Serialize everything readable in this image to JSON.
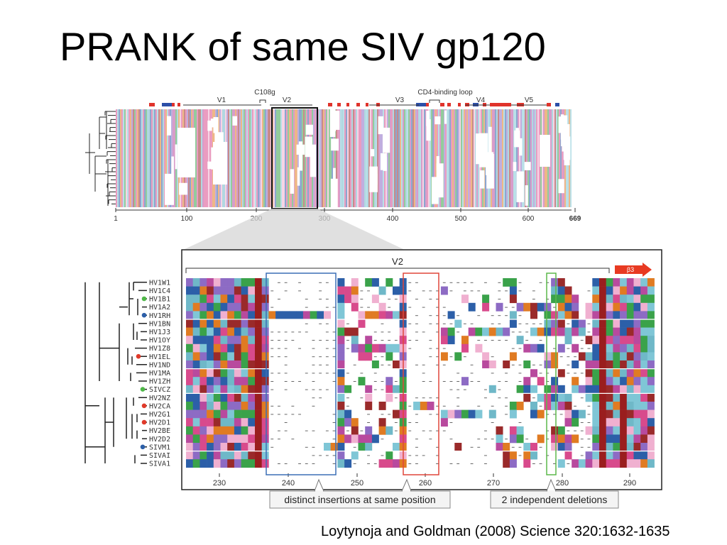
{
  "slide": {
    "title": "PRANK of same SIV gp120",
    "citation": "Loytynoja and Goldman (2008) Science 320:1632-1635"
  },
  "overview": {
    "regions": [
      "V1",
      "C108g",
      "V2",
      "V3",
      "CD4-binding loop",
      "V4",
      "V5"
    ],
    "axis_ticks": [
      "1",
      "100",
      "200",
      "300",
      "400",
      "500",
      "600",
      "669"
    ]
  },
  "detail": {
    "region_label": "V2",
    "strand_label": "β3",
    "sequences": [
      {
        "name": "HV1W1",
        "node": ""
      },
      {
        "name": "HV1C4",
        "node": ""
      },
      {
        "name": "HV1B1",
        "node": "green"
      },
      {
        "name": "HV1A2",
        "node": ""
      },
      {
        "name": "HV1RH",
        "node": "blue"
      },
      {
        "name": "HV1BN",
        "node": ""
      },
      {
        "name": "HV1J3",
        "node": ""
      },
      {
        "name": "HV1OY",
        "node": ""
      },
      {
        "name": "HV1Z8",
        "node": ""
      },
      {
        "name": "HV1EL",
        "node": "red"
      },
      {
        "name": "HV1ND",
        "node": ""
      },
      {
        "name": "HV1MA",
        "node": ""
      },
      {
        "name": "HV1ZH",
        "node": ""
      },
      {
        "name": "SIVCZ",
        "node": "green"
      },
      {
        "name": "HV2NZ",
        "node": ""
      },
      {
        "name": "HV2CA",
        "node": "red"
      },
      {
        "name": "HV2G1",
        "node": ""
      },
      {
        "name": "HV2D1",
        "node": "red"
      },
      {
        "name": "HV2BE",
        "node": ""
      },
      {
        "name": "HV2D2",
        "node": ""
      },
      {
        "name": "SIVM1",
        "node": "blue"
      },
      {
        "name": "SIVAI",
        "node": ""
      },
      {
        "name": "SIVA1",
        "node": ""
      }
    ],
    "axis_ticks": [
      "230",
      "240",
      "250",
      "260",
      "270",
      "280",
      "290"
    ],
    "callout_insertions": "distinct insertions at same position",
    "callout_deletions": "2 independent deletions"
  }
}
